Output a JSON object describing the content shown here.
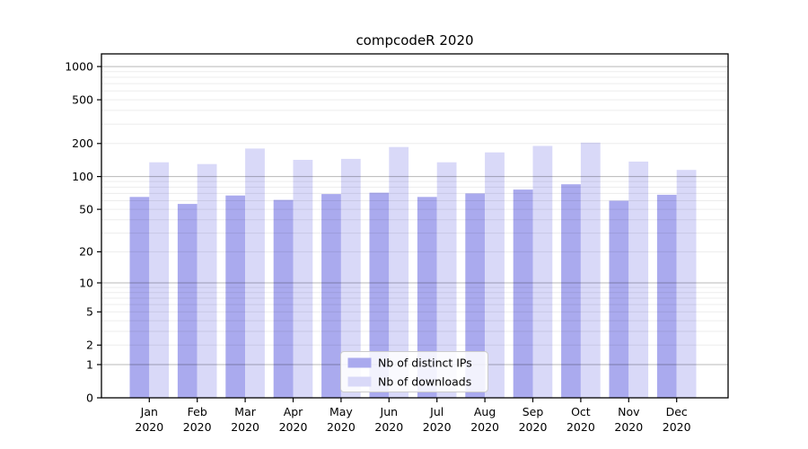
{
  "chart_data": {
    "type": "bar",
    "title": "compcodeR 2020",
    "categories": [
      "Jan",
      "Feb",
      "Mar",
      "Apr",
      "May",
      "Jun",
      "Jul",
      "Aug",
      "Sep",
      "Oct",
      "Nov",
      "Dec"
    ],
    "category_year": "2020",
    "series": [
      {
        "name": "Nb of distinct IPs",
        "color": "#aaaaee",
        "values": [
          65,
          56,
          67,
          61,
          69,
          71,
          65,
          70,
          76,
          85,
          60,
          68
        ]
      },
      {
        "name": "Nb of downloads",
        "color": "#d9d9f8",
        "values": [
          135,
          130,
          180,
          142,
          145,
          186,
          135,
          166,
          190,
          204,
          137,
          115
        ]
      }
    ],
    "xlabel": "",
    "ylabel": "",
    "y_scale": "log1p",
    "y_ticks": [
      0,
      1,
      2,
      5,
      10,
      20,
      50,
      100,
      200,
      500,
      1000
    ],
    "ylim": [
      0,
      1300
    ],
    "grid": true,
    "grid_major_values": [
      1,
      10,
      100,
      1000
    ],
    "grid_minor_multipliers": [
      2,
      3,
      4,
      5,
      6,
      7,
      8,
      9
    ],
    "legend_position": "bottom-center",
    "colors": {
      "frame": "#000000",
      "grid_major": "rgba(0,0,0,0.28)",
      "grid_minor": "rgba(0,0,0,0.075)",
      "legend_border": "#cccccc",
      "legend_background": "rgba(255,255,255,0.85)",
      "text": "#000000"
    }
  }
}
